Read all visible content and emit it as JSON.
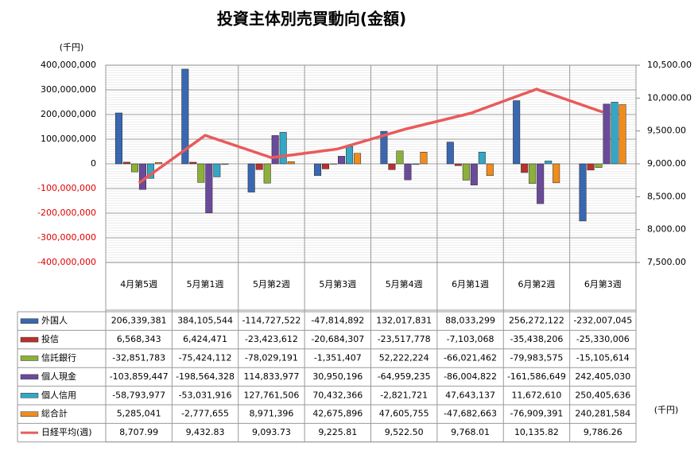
{
  "chart_data": {
    "type": "bar",
    "title": "投資主体別売買動向(金額)",
    "ylabel": "(千円)",
    "table_unit": "(千円)",
    "categories": [
      "4月第5週",
      "5月第1週",
      "5月第2週",
      "5月第3週",
      "5月第4週",
      "6月第1週",
      "6月第2週",
      "6月第3週"
    ],
    "ylim": [
      -400000000,
      400000000
    ],
    "yticks": [
      {
        "value": -400000000,
        "label": "-400,000,000"
      },
      {
        "value": -300000000,
        "label": "-300,000,000"
      },
      {
        "value": -200000000,
        "label": "-200,000,000"
      },
      {
        "value": -100000000,
        "label": "-100,000,000"
      },
      0,
      {
        "value": 100000000,
        "label": "100,000,000"
      },
      {
        "value": 200000000,
        "label": "200,000,000"
      },
      {
        "value": 300000000,
        "label": "300,000,000"
      },
      {
        "value": 400000000,
        "label": "400,000,000"
      }
    ],
    "y2lim": [
      7500,
      10500
    ],
    "y2ticks": [
      {
        "value": 7500,
        "label": "7,500.00"
      },
      {
        "value": 8000,
        "label": "8,000.00"
      },
      {
        "value": 8500,
        "label": "8,500.00"
      },
      {
        "value": 9000,
        "label": "9,000.00"
      },
      {
        "value": 9500,
        "label": "9,500.00"
      },
      {
        "value": 10000,
        "label": "10,000.00"
      },
      {
        "value": 10500,
        "label": "10,500.00"
      }
    ],
    "grid": true,
    "series": [
      {
        "name": "外国人",
        "color": "#3a67b0",
        "values": [
          206339381,
          384105544,
          -114727522,
          -47814892,
          132017831,
          88033299,
          256272122,
          -232007045
        ],
        "value_labels": [
          "206,339,381",
          "384,105,544",
          "-114,727,522",
          "-47,814,892",
          "132,017,831",
          "88,033,299",
          "256,272,122",
          "-232,007,045"
        ]
      },
      {
        "name": "投信",
        "color": "#b9312e",
        "values": [
          6568343,
          6424471,
          -23423612,
          -20684307,
          -23517778,
          -7103068,
          -35438206,
          -25330006
        ],
        "value_labels": [
          "6,568,343",
          "6,424,471",
          "-23,423,612",
          "-20,684,307",
          "-23,517,778",
          "-7,103,068",
          "-35,438,206",
          "-25,330,006"
        ]
      },
      {
        "name": "信託銀行",
        "color": "#8db03a",
        "values": [
          -32851783,
          -75424112,
          -78029191,
          -1351407,
          52222224,
          -66021462,
          -79983575,
          -15105614
        ],
        "value_labels": [
          "-32,851,783",
          "-75,424,112",
          "-78,029,191",
          "-1,351,407",
          "52,222,224",
          "-66,021,462",
          "-79,983,575",
          "-15,105,614"
        ]
      },
      {
        "name": "個人現金",
        "color": "#6a4b9a",
        "values": [
          -103859447,
          -198564328,
          114833977,
          30950196,
          -64959235,
          -86004822,
          -161586649,
          242405030
        ],
        "value_labels": [
          "-103,859,447",
          "-198,564,328",
          "114,833,977",
          "30,950,196",
          "-64,959,235",
          "-86,004,822",
          "-161,586,649",
          "242,405,030"
        ]
      },
      {
        "name": "個人信用",
        "color": "#35a6c4",
        "values": [
          -58793977,
          -53031916,
          127761506,
          70432366,
          -2821721,
          47643137,
          11672610,
          250405636
        ],
        "value_labels": [
          "-58,793,977",
          "-53,031,916",
          "127,761,506",
          "70,432,366",
          "-2,821,721",
          "47,643,137",
          "11,672,610",
          "250,405,636"
        ]
      },
      {
        "name": "総合計",
        "color": "#f08c1f",
        "values": [
          5285041,
          -2777655,
          8971396,
          42675896,
          47605755,
          -47682663,
          -76909391,
          240281584
        ],
        "value_labels": [
          "5,285,041",
          "-2,777,655",
          "8,971,396",
          "42,675,896",
          "47,605,755",
          "-47,682,663",
          "-76,909,391",
          "240,281,584"
        ]
      },
      {
        "name": "日経平均(週)",
        "color": "#e85b5b",
        "type": "line",
        "axis": "y2",
        "values": [
          8707.99,
          9432.83,
          9093.73,
          9225.81,
          9522.5,
          9768.01,
          10135.82,
          9786.26
        ],
        "value_labels": [
          "8,707.99",
          "9,432.83",
          "9,093.73",
          "9,225.81",
          "9,522.50",
          "9,768.01",
          "10,135.82",
          "9,786.26"
        ]
      }
    ]
  }
}
